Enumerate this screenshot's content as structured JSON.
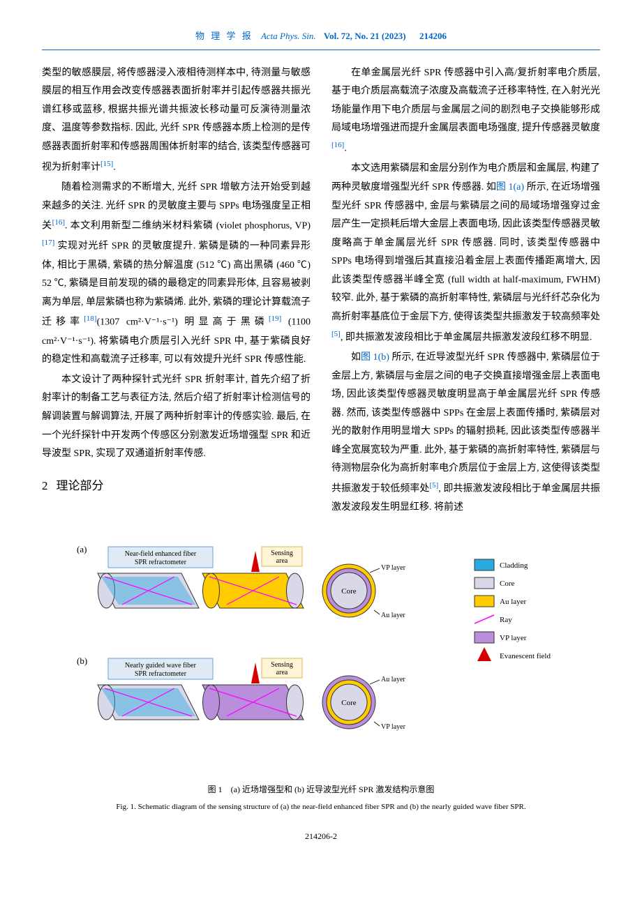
{
  "header": {
    "journal_cn": "物 理 学 报",
    "journal_en": "Acta Phys. Sin.",
    "vol_issue": "Vol. 72, No. 21 (2023)",
    "article_no": "214206"
  },
  "body": {
    "p1": "类型的敏感膜层, 将传感器浸入液相待测样本中, 待测量与敏感膜层的相互作用会改变传感器表面折射率并引起传感器共振光谱红移或蓝移, 根据共振光谱共振波长移动量可反演待测量浓度、温度等参数指标. 因此, 光纤 SPR 传感器本质上检测的是传感器表面折射率和传感器周围体折射率的结合, 该类型传感器可视为折射率计",
    "p1_ref": "[15]",
    "p1_end": ".",
    "p2a": "随着检测需求的不断增大, 光纤 SPR 增敏方法开始受到越来越多的关注. 光纤 SPR 的灵敏度主要与 SPPs 电场强度呈正相关",
    "p2_ref1": "[16]",
    "p2b": ". 本文利用新型二维纳米材料紫磷 (violet phosphorus, VP)",
    "p2_ref2": "[17]",
    "p2c": " 实现对光纤 SPR 的灵敏度提升. 紫磷是磷的一种同素异形体, 相比于黑磷, 紫磷的热分解温度 (512 ℃) 高出黑磷 (460 ℃) 52 ℃, 紫磷是目前发现的磷的最稳定的同素异形体, 且容易被剥离为单层, 单层紫磷也称为紫磷烯. 此外, 紫磷的理论计算载流子迁移率",
    "p2_ref3": "[18]",
    "p2d": "(1307 cm²·V⁻¹·s⁻¹) 明显高于黑磷",
    "p2_ref4": "[19]",
    "p2e": " (1100 cm²·V⁻¹·s⁻¹). 将紫磷电介质层引入光纤 SPR 中, 基于紫磷良好的稳定性和高载流子迁移率, 可以有效提升光纤 SPR 传感性能.",
    "p3": "本文设计了两种探针式光纤 SPR 折射率计, 首先介绍了折射率计的制备工艺与表征方法, 然后介绍了折射率计检测信号的解调装置与解调算法, 开展了两种折射率计的传感实验. 最后, 在一个光纤探针中开发两个传感区分别激发近场增强型 SPR 和近导波型 SPR, 实现了双通道折射率传感.",
    "section_num": "2",
    "section_title": "理论部分",
    "p4a": "在单金属层光纤 SPR 传感器中引入高/复折射率电介质层, 基于电介质层高载流子浓度及高载流子迁移率特性, 在入射光光场能量作用下电介质层与金属层之间的剧烈电子交换能够形成局域电场增强进而提升金属层表面电场强度, 提升传感器灵敏度",
    "p4_ref": "[16]",
    "p4b": ".",
    "p5a": "本文选用紫磷层和金层分别作为电介质层和金属层, 构建了两种灵敏度增强型光纤 SPR 传感器. 如",
    "p5_figref": "图 1(a)",
    "p5b": " 所示, 在近场增强型光纤 SPR 传感器中, 金层与紫磷层之间的局域场增强穿过金层产生一定损耗后增大金层上表面电场, 因此该类型传感器灵敏度略高于单金属层光纤 SPR 传感器. 同时, 该类型传感器中 SPPs 电场得到增强后其直接沿着金层上表面传播距离增大, 因此该类型传感器半峰全宽 (full width at half-maximum, FWHM) 较窄. 此外, 基于紫磷的高折射率特性, 紫磷层与光纤纤芯杂化为高折射率基底位于金层下方, 使得该类型共振激发于较高频率处",
    "p5_ref": "[5]",
    "p5c": ", 即共振激发波段相比于单金属层共振激发波段红移不明显.",
    "p6a": "如",
    "p6_figref": "图 1(b)",
    "p6b": " 所示, 在近导波型光纤 SPR 传感器中, 紫磷层位于金层上方, 紫磷层与金层之间的电子交换直接增强金层上表面电场, 因此该类型传感器灵敏度明显高于单金属层光纤 SPR 传感器. 然而, 该类型传感器中 SPPs 在金层上表面传播时, 紫磷层对光的散射作用明显增大 SPPs 的辐射损耗, 因此该类型传感器半峰全宽展宽较为严重. 此外, 基于紫磷的高折射率特性, 紫磷层与待测物层杂化为高折射率电介质层位于金层上方, 这使得该类型共振激发于较低频率处",
    "p6_ref": "[5]",
    "p6c": ", 即共振激发波段相比于单金属层共振激发波段发生明显红移. 将前述"
  },
  "figure": {
    "panel_a": "(a)",
    "panel_b": "(b)",
    "label_a": "Near-field enhanced fiber SPR refractometer",
    "label_b": "Nearly guided wave fiber SPR refractometer",
    "sensing_area": "Sensing area",
    "core": "Core",
    "vp_layer": "VP layer",
    "au_layer": "Au layer",
    "legend": {
      "cladding": "Cladding",
      "core": "Core",
      "au_layer": "Au layer",
      "ray": "Ray",
      "vp_layer": "VP layer",
      "evanescent": "Evanescent field"
    },
    "caption_cn": "图 1　(a) 近场增强型和 (b) 近导波型光纤 SPR 激发结构示意图",
    "caption_en": "Fig. 1. Schematic diagram of the sensing structure of (a) the near-field enhanced fiber SPR and (b) the nearly guided wave fiber SPR.",
    "colors": {
      "cladding": "#2aa9e0",
      "core": "#d8d8e8",
      "au": "#ffcc00",
      "au_dark": "#d4a800",
      "vp": "#b98edb",
      "ray": "#ff00ff",
      "evan": "#d40000",
      "outline": "#333333"
    }
  },
  "footer": {
    "page_no": "214206-2"
  }
}
